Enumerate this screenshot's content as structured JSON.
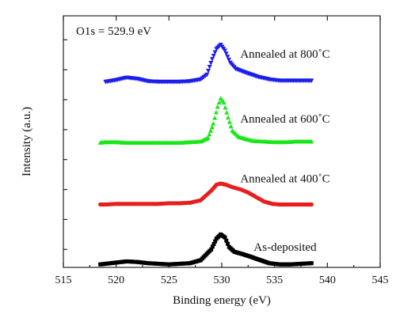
{
  "chart_data": {
    "type": "scatter",
    "xlabel": "Binding energy (eV)",
    "ylabel": "Intensity (a.u.)",
    "xlim": [
      515,
      545
    ],
    "ylim": [
      0,
      4.2
    ],
    "x_ticks": [
      "515",
      "520",
      "525",
      "530",
      "535",
      "540",
      "545"
    ],
    "y_ticks_labeled": false,
    "grid": false,
    "annotation": "O1s = 529.9 eV",
    "series": [
      {
        "name": "As-deposited",
        "color": "#000000",
        "marker": "square",
        "points": [
          [
            518.5,
            0.05
          ],
          [
            519,
            0.06
          ],
          [
            520,
            0.08
          ],
          [
            521,
            0.1
          ],
          [
            522,
            0.09
          ],
          [
            523,
            0.07
          ],
          [
            524,
            0.06
          ],
          [
            525,
            0.05
          ],
          [
            526,
            0.06
          ],
          [
            527,
            0.07
          ],
          [
            528,
            0.12
          ],
          [
            529,
            0.3
          ],
          [
            529.5,
            0.48
          ],
          [
            529.9,
            0.55
          ],
          [
            530.3,
            0.5
          ],
          [
            530.7,
            0.34
          ],
          [
            531.2,
            0.26
          ],
          [
            532,
            0.22
          ],
          [
            532.7,
            0.18
          ],
          [
            533.5,
            0.13
          ],
          [
            534.5,
            0.07
          ],
          [
            535.5,
            0.05
          ],
          [
            536.5,
            0.05
          ],
          [
            537.5,
            0.06
          ],
          [
            538.5,
            0.07
          ]
        ]
      },
      {
        "name": "Annealed at 400˚C",
        "color": "#e81e1e",
        "marker": "circle",
        "points": [
          [
            518.5,
            1.05
          ],
          [
            519,
            1.05
          ],
          [
            520,
            1.06
          ],
          [
            521,
            1.06
          ],
          [
            522,
            1.06
          ],
          [
            523,
            1.06
          ],
          [
            524,
            1.06
          ],
          [
            525,
            1.07
          ],
          [
            526,
            1.07
          ],
          [
            527,
            1.08
          ],
          [
            528,
            1.12
          ],
          [
            529,
            1.28
          ],
          [
            529.5,
            1.38
          ],
          [
            529.9,
            1.4
          ],
          [
            530.4,
            1.38
          ],
          [
            531,
            1.34
          ],
          [
            531.8,
            1.3
          ],
          [
            532.5,
            1.25
          ],
          [
            533.3,
            1.17
          ],
          [
            534,
            1.1
          ],
          [
            534.8,
            1.06
          ],
          [
            535.5,
            1.05
          ],
          [
            536.5,
            1.05
          ],
          [
            537.5,
            1.05
          ],
          [
            538.5,
            1.05
          ]
        ]
      },
      {
        "name": "Annealed at 600˚C",
        "color": "#19e619",
        "marker": "triangle-up",
        "points": [
          [
            518.5,
            2.08
          ],
          [
            519,
            2.09
          ],
          [
            520,
            2.09
          ],
          [
            521,
            2.08
          ],
          [
            522,
            2.08
          ],
          [
            523,
            2.08
          ],
          [
            524,
            2.08
          ],
          [
            525,
            2.08
          ],
          [
            526,
            2.08
          ],
          [
            527,
            2.09
          ],
          [
            528,
            2.1
          ],
          [
            528.7,
            2.16
          ],
          [
            529.2,
            2.4
          ],
          [
            529.6,
            2.68
          ],
          [
            529.9,
            2.82
          ],
          [
            530.2,
            2.75
          ],
          [
            530.6,
            2.5
          ],
          [
            531,
            2.28
          ],
          [
            531.6,
            2.18
          ],
          [
            532.3,
            2.14
          ],
          [
            533,
            2.11
          ],
          [
            534,
            2.1
          ],
          [
            535,
            2.09
          ],
          [
            536,
            2.09
          ],
          [
            537,
            2.1
          ],
          [
            538.5,
            2.1
          ]
        ]
      },
      {
        "name": "Annealed at 800˚C",
        "color": "#1d1dec",
        "marker": "triangle-down",
        "points": [
          [
            519,
            3.1
          ],
          [
            520,
            3.13
          ],
          [
            521,
            3.17
          ],
          [
            522,
            3.15
          ],
          [
            523,
            3.11
          ],
          [
            524,
            3.1
          ],
          [
            525,
            3.1
          ],
          [
            526,
            3.1
          ],
          [
            527,
            3.11
          ],
          [
            528,
            3.14
          ],
          [
            528.6,
            3.22
          ],
          [
            529.1,
            3.48
          ],
          [
            529.5,
            3.65
          ],
          [
            529.9,
            3.72
          ],
          [
            530.3,
            3.62
          ],
          [
            530.8,
            3.42
          ],
          [
            531.3,
            3.32
          ],
          [
            532,
            3.27
          ],
          [
            532.8,
            3.22
          ],
          [
            533.5,
            3.18
          ],
          [
            534.5,
            3.14
          ],
          [
            535.5,
            3.12
          ],
          [
            536.5,
            3.12
          ],
          [
            537.5,
            3.12
          ],
          [
            538.5,
            3.12
          ]
        ]
      }
    ]
  }
}
